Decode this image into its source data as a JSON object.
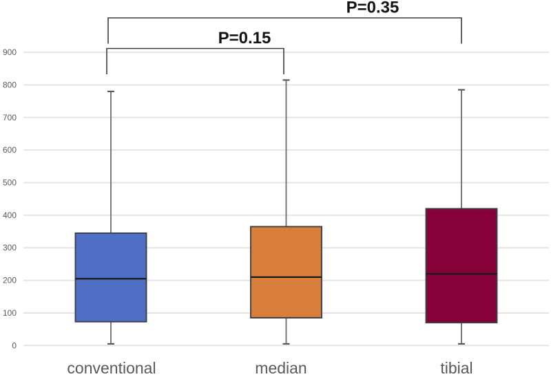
{
  "chart_data": {
    "type": "boxplot",
    "title": "",
    "xlabel": "",
    "ylabel": "",
    "ylim": [
      0,
      900
    ],
    "ytick_step": 100,
    "ytick_labels": [
      "0",
      "100",
      "200",
      "300",
      "400",
      "500",
      "600",
      "700",
      "800",
      "900"
    ],
    "grid": true,
    "legend": "none",
    "categories": [
      "conventional",
      "median",
      "tibial"
    ],
    "series": [
      {
        "name": "conventional",
        "color": "#4F6FC5",
        "min": 5,
        "q1": 73,
        "median": 205,
        "q3": 345,
        "max": 780
      },
      {
        "name": "median",
        "color": "#D87E3B",
        "min": 5,
        "q1": 85,
        "median": 210,
        "q3": 365,
        "max": 815
      },
      {
        "name": "tibial",
        "color": "#870139",
        "min": 5,
        "q1": 70,
        "median": 220,
        "q3": 420,
        "max": 785
      }
    ],
    "annotations": [
      {
        "label": "P=0.15",
        "from": "conventional",
        "to": "median"
      },
      {
        "label": "P=0.35",
        "from": "conventional",
        "to": "tibial"
      }
    ],
    "colors": {
      "gridline": "#e4e4e4",
      "axis_text": "#595959",
      "box_border": "#3b3f49",
      "median_line": "#1a1a1a",
      "whisker": "#7a7a7a",
      "whisker_cap": "#595959",
      "bracket": "#3a3a3a",
      "p_text": "#141414",
      "background": "#ffffff"
    }
  }
}
